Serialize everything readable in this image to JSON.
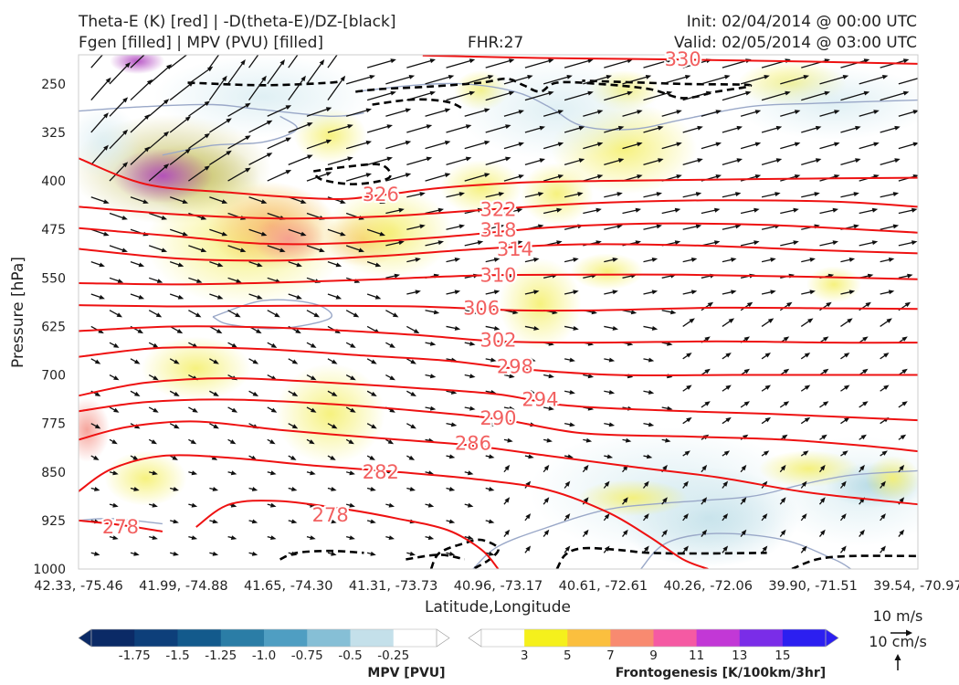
{
  "header": {
    "title_line1": "Theta-E (K) [red] | -D(theta-E)/DZ-[black]",
    "title_line2": "Fgen [filled] | MPV (PVU) [filled]",
    "fhr": "FHR:27",
    "init": "Init: 02/04/2014 @ 00:00 UTC",
    "valid": "Valid: 02/05/2014 @ 03:00 UTC"
  },
  "chart_data": {
    "type": "cross-section",
    "ylabel": "Pressure [hPa]",
    "xlabel": "Latitude,Longitude",
    "y_ticks": [
      250,
      325,
      400,
      475,
      550,
      625,
      700,
      775,
      850,
      925,
      1000
    ],
    "ylim": [
      1000,
      205
    ],
    "x_ticks": [
      "42.33, -75.46",
      "41.99, -74.88",
      "41.65, -74.30",
      "41.31, -73.73",
      "40.96, -73.17",
      "40.61, -72.61",
      "40.26, -72.06",
      "39.90, -71.51",
      "39.54, -70.97"
    ],
    "theta_e_contours": [
      {
        "value": 330,
        "points": [
          [
            0.41,
            206
          ],
          [
            0.55,
            210
          ],
          [
            0.7,
            212
          ],
          [
            0.85,
            215
          ],
          [
            1.0,
            219
          ]
        ]
      },
      {
        "value": 326,
        "points": [
          [
            0.0,
            365
          ],
          [
            0.08,
            405
          ],
          [
            0.18,
            418
          ],
          [
            0.3,
            428
          ],
          [
            0.36,
            422
          ],
          [
            0.43,
            411
          ],
          [
            0.52,
            403
          ],
          [
            0.62,
            400
          ],
          [
            0.75,
            398
          ],
          [
            0.9,
            396
          ],
          [
            1.0,
            395
          ]
        ]
      },
      {
        "value": 322,
        "points": [
          [
            0.0,
            440
          ],
          [
            0.12,
            452
          ],
          [
            0.24,
            458
          ],
          [
            0.36,
            455
          ],
          [
            0.48,
            445
          ],
          [
            0.6,
            435
          ],
          [
            0.75,
            430
          ],
          [
            0.9,
            432
          ],
          [
            1.0,
            440
          ]
        ]
      },
      {
        "value": 318,
        "points": [
          [
            0.0,
            473
          ],
          [
            0.12,
            486
          ],
          [
            0.22,
            497
          ],
          [
            0.32,
            496
          ],
          [
            0.44,
            486
          ],
          [
            0.56,
            472
          ],
          [
            0.68,
            466
          ],
          [
            0.82,
            468
          ],
          [
            1.0,
            480
          ]
        ]
      },
      {
        "value": 314,
        "points": [
          [
            0.0,
            505
          ],
          [
            0.12,
            520
          ],
          [
            0.24,
            523
          ],
          [
            0.36,
            516
          ],
          [
            0.48,
            505
          ],
          [
            0.6,
            498
          ],
          [
            0.74,
            500
          ],
          [
            0.88,
            507
          ],
          [
            1.0,
            512
          ]
        ]
      },
      {
        "value": 310,
        "points": [
          [
            0.0,
            558
          ],
          [
            0.12,
            560
          ],
          [
            0.24,
            557
          ],
          [
            0.36,
            552
          ],
          [
            0.48,
            546
          ],
          [
            0.58,
            545
          ],
          [
            0.72,
            545
          ],
          [
            0.86,
            548
          ],
          [
            1.0,
            552
          ]
        ]
      },
      {
        "value": 306,
        "points": [
          [
            0.0,
            592
          ],
          [
            0.12,
            594
          ],
          [
            0.26,
            593
          ],
          [
            0.4,
            594
          ],
          [
            0.52,
            600
          ],
          [
            0.62,
            600
          ],
          [
            0.76,
            596
          ],
          [
            0.9,
            597
          ],
          [
            1.0,
            598
          ]
        ]
      },
      {
        "value": 302,
        "points": [
          [
            0.0,
            632
          ],
          [
            0.12,
            625
          ],
          [
            0.26,
            628
          ],
          [
            0.4,
            638
          ],
          [
            0.5,
            648
          ],
          [
            0.62,
            650
          ],
          [
            0.76,
            648
          ],
          [
            0.9,
            650
          ],
          [
            1.0,
            650
          ]
        ]
      },
      {
        "value": 298,
        "points": [
          [
            0.0,
            672
          ],
          [
            0.1,
            658
          ],
          [
            0.22,
            660
          ],
          [
            0.34,
            670
          ],
          [
            0.44,
            678
          ],
          [
            0.52,
            690
          ],
          [
            0.64,
            700
          ],
          [
            0.78,
            700
          ],
          [
            0.9,
            700
          ],
          [
            1.0,
            700
          ]
        ]
      },
      {
        "value": 294,
        "points": [
          [
            0.0,
            732
          ],
          [
            0.08,
            712
          ],
          [
            0.18,
            705
          ],
          [
            0.3,
            712
          ],
          [
            0.4,
            720
          ],
          [
            0.5,
            730
          ],
          [
            0.58,
            747
          ],
          [
            0.7,
            755
          ],
          [
            0.82,
            760
          ],
          [
            1.0,
            770
          ]
        ]
      },
      {
        "value": 290,
        "points": [
          [
            0.0,
            756
          ],
          [
            0.08,
            742
          ],
          [
            0.18,
            738
          ],
          [
            0.3,
            745
          ],
          [
            0.4,
            755
          ],
          [
            0.5,
            768
          ],
          [
            0.6,
            790
          ],
          [
            0.72,
            795
          ],
          [
            0.84,
            800
          ],
          [
            0.94,
            810
          ],
          [
            1.0,
            818
          ]
        ]
      },
      {
        "value": 286,
        "points": [
          [
            0.0,
            800
          ],
          [
            0.06,
            780
          ],
          [
            0.14,
            772
          ],
          [
            0.24,
            785
          ],
          [
            0.36,
            798
          ],
          [
            0.46,
            808
          ],
          [
            0.56,
            825
          ],
          [
            0.66,
            842
          ],
          [
            0.76,
            858
          ],
          [
            0.86,
            880
          ],
          [
            0.94,
            892
          ],
          [
            1.0,
            900
          ]
        ]
      },
      {
        "value": 282,
        "points": [
          [
            0.0,
            880
          ],
          [
            0.04,
            845
          ],
          [
            0.1,
            825
          ],
          [
            0.18,
            828
          ],
          [
            0.28,
            840
          ],
          [
            0.38,
            850
          ],
          [
            0.48,
            862
          ],
          [
            0.56,
            878
          ],
          [
            0.63,
            912
          ],
          [
            0.68,
            950
          ],
          [
            0.72,
            985
          ],
          [
            0.75,
            1000
          ]
        ]
      },
      {
        "value": 278,
        "points": [
          [
            0.14,
            935
          ],
          [
            0.18,
            900
          ],
          [
            0.24,
            895
          ],
          [
            0.32,
            908
          ],
          [
            0.38,
            922
          ],
          [
            0.44,
            940
          ],
          [
            0.48,
            970
          ],
          [
            0.5,
            1000
          ]
        ]
      },
      {
        "value": 278,
        "points": [
          [
            0.0,
            925
          ],
          [
            0.05,
            932
          ],
          [
            0.1,
            942
          ]
        ]
      }
    ],
    "colorbars": [
      {
        "label": "MPV [PVU]",
        "tick_labels": [
          "-1.75",
          "-1.5",
          "-1.25",
          "-1.0",
          "-0.75",
          "-0.5",
          "-0.25"
        ],
        "colors": [
          "#0b2a66",
          "#0d3f7a",
          "#135a8c",
          "#2b7da6",
          "#4f9ec2",
          "#86bfd6",
          "#c4e0ea",
          "#ffffff"
        ]
      },
      {
        "label": "Frontogenesis [K/100km/3hr]",
        "tick_labels": [
          "3",
          "5",
          "7",
          "9",
          "11",
          "13",
          "15"
        ],
        "colors": [
          "#ffffff",
          "#f5f01c",
          "#fbbf3e",
          "#f88a70",
          "#f55aa3",
          "#c238d6",
          "#7a2de8",
          "#2c1ff0"
        ]
      }
    ],
    "reference_vectors": [
      "10 m/s",
      "10 cm/s"
    ]
  }
}
